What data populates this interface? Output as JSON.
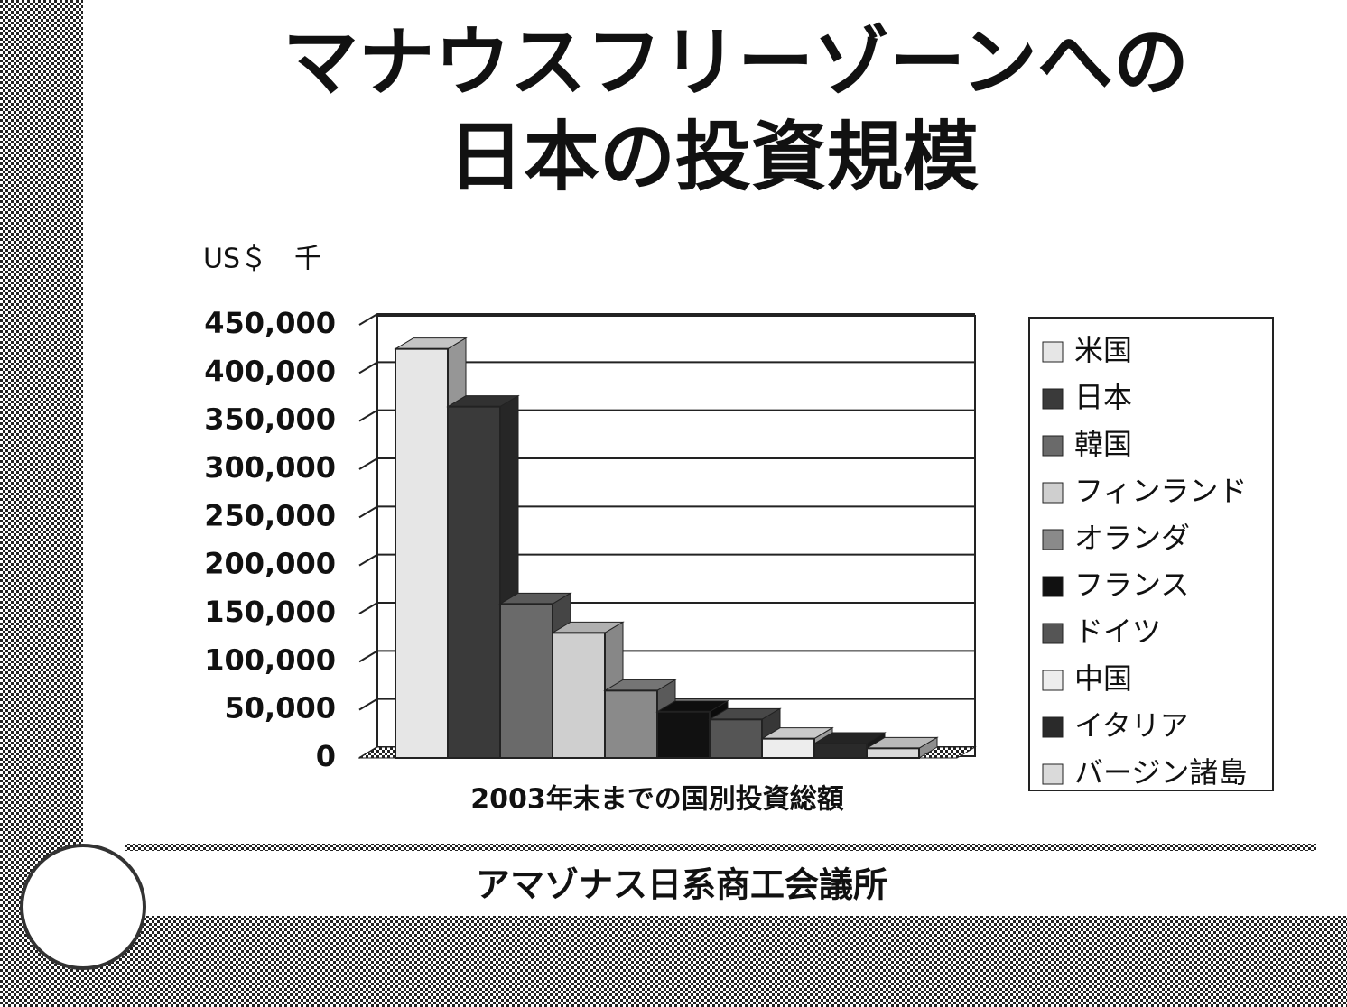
{
  "title_lines": [
    "マナウスフリーゾーンへの",
    "日本の投資規模"
  ],
  "footer": "アマゾナス日系商工会議所",
  "chart_data": {
    "type": "bar",
    "y_unit": "US＄　千",
    "x_label": "2003年末までの国別投資総額",
    "categories": [
      null
    ],
    "series": [
      {
        "name": "米国",
        "color": "#e6e6e6",
        "values": [
          425000
        ]
      },
      {
        "name": "日本",
        "color": "#3a3a3a",
        "values": [
          365000
        ]
      },
      {
        "name": "韓国",
        "color": "#6a6a6a",
        "values": [
          160000
        ]
      },
      {
        "name": "フィンランド",
        "color": "#cfcfcf",
        "values": [
          130000
        ]
      },
      {
        "name": "オランダ",
        "color": "#8a8a8a",
        "values": [
          70000
        ]
      },
      {
        "name": "フランス",
        "color": "#111111",
        "values": [
          48000
        ]
      },
      {
        "name": "ドイツ",
        "color": "#555555",
        "values": [
          40000
        ]
      },
      {
        "name": "中国",
        "color": "#ededed",
        "values": [
          20000
        ]
      },
      {
        "name": "イタリア",
        "color": "#2a2a2a",
        "values": [
          15000
        ]
      },
      {
        "name": "バージン諸島",
        "color": "#dadada",
        "values": [
          10000
        ]
      }
    ],
    "ylim": [
      0,
      450000
    ],
    "yticks": [
      0,
      {
        "value": 50000,
        "label": "50,000"
      },
      {
        "value": 100000,
        "label": "100,000"
      },
      {
        "value": 150000,
        "label": "150,000"
      },
      {
        "value": 200000,
        "label": "200,000"
      },
      {
        "value": 250000,
        "label": "250,000"
      },
      {
        "value": 300000,
        "label": "300,000"
      },
      {
        "value": 350000,
        "label": "350,000"
      },
      {
        "value": 400000,
        "label": "400,000"
      },
      {
        "value": 450000,
        "label": "450,000"
      }
    ],
    "grid": true
  }
}
